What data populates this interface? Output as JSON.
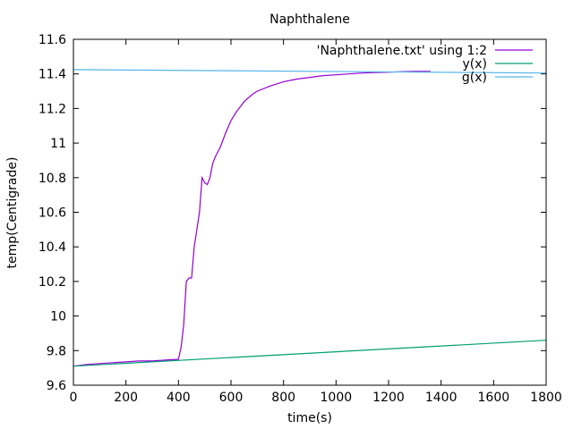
{
  "chart_data": {
    "type": "line",
    "title": "Naphthalene",
    "xlabel": "time(s)",
    "ylabel": "temp(Centigrade)",
    "xlim": [
      0,
      1800
    ],
    "ylim": [
      9.6,
      11.6
    ],
    "xticks": [
      0,
      200,
      400,
      600,
      800,
      1000,
      1200,
      1400,
      1600,
      1800
    ],
    "yticks": [
      9.6,
      9.8,
      10,
      10.2,
      10.4,
      10.6,
      10.8,
      11,
      11.2,
      11.4,
      11.6
    ],
    "xtick_labels": [
      "0",
      "200",
      "400",
      "600",
      "800",
      "1000",
      "1200",
      "1400",
      "1600",
      "1800"
    ],
    "ytick_labels": [
      "9.6",
      "9.8",
      "10",
      "10.2",
      "10.4",
      "10.6",
      "10.8",
      "11",
      "11.2",
      "11.4",
      "11.6"
    ],
    "grid": false,
    "legend_position": "top-right",
    "series": [
      {
        "name": "'Naphthalene.txt' using 1:2",
        "color": "#9400d3",
        "x": [
          0,
          50,
          100,
          150,
          200,
          250,
          300,
          350,
          400,
          410,
          420,
          430,
          440,
          450,
          460,
          470,
          480,
          490,
          500,
          510,
          520,
          530,
          540,
          560,
          580,
          600,
          620,
          650,
          680,
          700,
          750,
          800,
          850,
          900,
          950,
          1000,
          1050,
          1100,
          1150,
          1200,
          1250,
          1300,
          1360
        ],
        "y": [
          9.71,
          9.72,
          9.725,
          9.73,
          9.735,
          9.74,
          9.74,
          9.745,
          9.75,
          9.82,
          9.95,
          10.2,
          10.22,
          10.22,
          10.4,
          10.5,
          10.6,
          10.8,
          10.77,
          10.76,
          10.8,
          10.88,
          10.92,
          10.98,
          11.06,
          11.13,
          11.18,
          11.24,
          11.28,
          11.3,
          11.33,
          11.355,
          11.37,
          11.38,
          11.39,
          11.395,
          11.4,
          11.405,
          11.408,
          11.41,
          11.413,
          11.415,
          11.415
        ]
      },
      {
        "name": "y(x)",
        "color": "#009e73",
        "x": [
          0,
          1800
        ],
        "y": [
          9.71,
          9.86
        ]
      },
      {
        "name": "g(x)",
        "color": "#56b4e9",
        "x": [
          0,
          1800
        ],
        "y": [
          11.425,
          11.405
        ]
      }
    ]
  }
}
